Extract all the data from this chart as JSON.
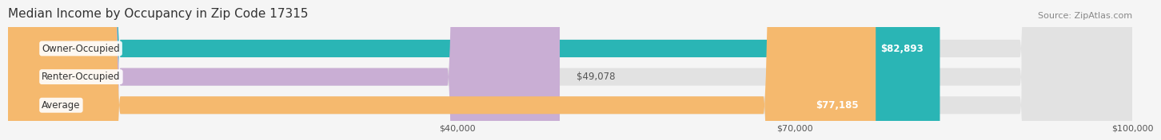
{
  "title": "Median Income by Occupancy in Zip Code 17315",
  "source": "Source: ZipAtlas.com",
  "categories": [
    "Owner-Occupied",
    "Renter-Occupied",
    "Average"
  ],
  "values": [
    82893,
    49078,
    77185
  ],
  "bar_colors": [
    "#2ab5b5",
    "#c9aed4",
    "#f5b96e"
  ],
  "value_labels": [
    "$82,893",
    "$49,078",
    "$77,185"
  ],
  "xlim": [
    0,
    100000
  ],
  "xticks": [
    40000,
    70000,
    100000
  ],
  "xtick_labels": [
    "$40,000",
    "$70,000",
    "$100,000"
  ],
  "background_color": "#f5f5f5",
  "bar_background_color": "#e2e2e2",
  "label_inside_bar_color": "#ffffff",
  "label_outside_bar_color": "#555555",
  "title_fontsize": 11,
  "source_fontsize": 8,
  "bar_label_fontsize": 8.5,
  "category_label_fontsize": 8.5,
  "tick_fontsize": 8,
  "value_threshold": 60000
}
